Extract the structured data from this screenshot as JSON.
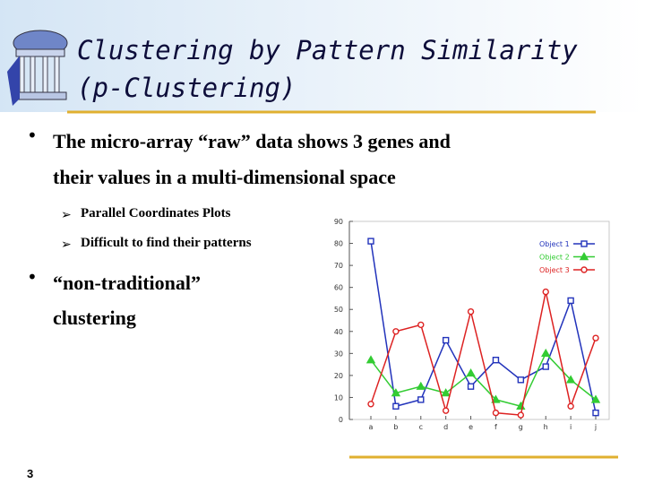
{
  "slide": {
    "title": [
      "Clustering by Pattern Similarity",
      "(p-Clustering)"
    ],
    "bullets": [
      [
        "The micro-array “raw” data shows 3 genes and",
        "their values in a multi-dimensional space"
      ],
      [
        "“non-traditional”",
        "clustering"
      ]
    ],
    "sub_bullets": [
      "Parallel Coordinates Plots",
      "Difficult to find their patterns"
    ],
    "page_number": "3"
  },
  "chart_data": {
    "type": "line",
    "categories": [
      "a",
      "b",
      "c",
      "d",
      "e",
      "f",
      "g",
      "h",
      "i",
      "j"
    ],
    "series": [
      {
        "name": "Object 1",
        "color": "#2233bb",
        "marker": "square",
        "values": [
          81,
          6,
          9,
          36,
          15,
          27,
          18,
          24,
          54,
          3
        ]
      },
      {
        "name": "Object 2",
        "color": "#33cc33",
        "marker": "triangle",
        "values": [
          27,
          12,
          15,
          12,
          21,
          9,
          6,
          30,
          18,
          9
        ]
      },
      {
        "name": "Object 3",
        "color": "#dd2222",
        "marker": "circle",
        "values": [
          7,
          40,
          43,
          4,
          49,
          3,
          2,
          58,
          6,
          37
        ]
      }
    ],
    "ylim": [
      0,
      90
    ],
    "yticks": [
      0,
      10,
      20,
      30,
      40,
      50,
      60,
      70,
      80,
      90
    ],
    "grid": false,
    "legend": "upper right"
  }
}
